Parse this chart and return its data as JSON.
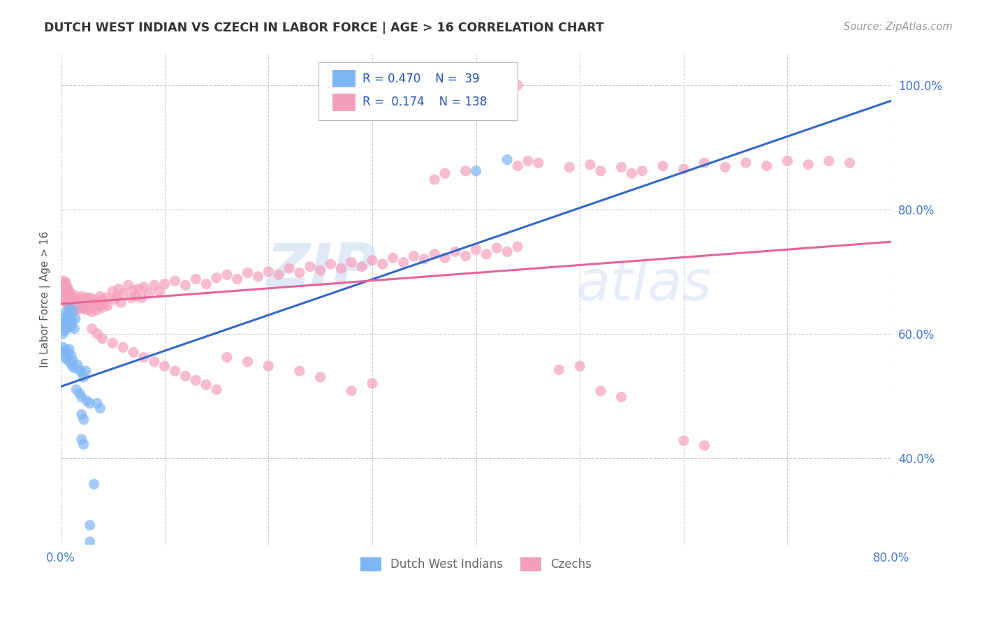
{
  "title": "DUTCH WEST INDIAN VS CZECH IN LABOR FORCE | AGE > 16 CORRELATION CHART",
  "source": "Source: ZipAtlas.com",
  "ylabel": "In Labor Force | Age > 16",
  "xlim": [
    0.0,
    0.8
  ],
  "ylim": [
    0.26,
    1.05
  ],
  "yticks_right": [
    0.4,
    0.6,
    0.8,
    1.0
  ],
  "yticklabels_right": [
    "40.0%",
    "60.0%",
    "80.0%",
    "100.0%"
  ],
  "blue_color": "#7EB6F5",
  "pink_color": "#F5A0BB",
  "line_blue": "#3366CC",
  "line_pink": "#E8629A",
  "blue_line_x": [
    0.0,
    0.8
  ],
  "blue_line_y": [
    0.515,
    0.975
  ],
  "pink_line_x": [
    0.0,
    0.8
  ],
  "pink_line_y": [
    0.648,
    0.748
  ],
  "background_color": "#FFFFFF",
  "grid_color": "#CCCCCC",
  "blue_scatter": [
    [
      0.002,
      0.6
    ],
    [
      0.003,
      0.61
    ],
    [
      0.003,
      0.625
    ],
    [
      0.004,
      0.618
    ],
    [
      0.004,
      0.605
    ],
    [
      0.005,
      0.635
    ],
    [
      0.006,
      0.628
    ],
    [
      0.006,
      0.615
    ],
    [
      0.007,
      0.622
    ],
    [
      0.007,
      0.61
    ],
    [
      0.008,
      0.64
    ],
    [
      0.009,
      0.618
    ],
    [
      0.01,
      0.63
    ],
    [
      0.01,
      0.612
    ],
    [
      0.011,
      0.62
    ],
    [
      0.012,
      0.638
    ],
    [
      0.013,
      0.608
    ],
    [
      0.014,
      0.624
    ],
    [
      0.002,
      0.578
    ],
    [
      0.003,
      0.57
    ],
    [
      0.004,
      0.562
    ],
    [
      0.005,
      0.574
    ],
    [
      0.006,
      0.558
    ],
    [
      0.007,
      0.568
    ],
    [
      0.008,
      0.575
    ],
    [
      0.009,
      0.554
    ],
    [
      0.01,
      0.565
    ],
    [
      0.011,
      0.548
    ],
    [
      0.012,
      0.556
    ],
    [
      0.013,
      0.545
    ],
    [
      0.016,
      0.55
    ],
    [
      0.018,
      0.542
    ],
    [
      0.02,
      0.538
    ],
    [
      0.022,
      0.53
    ],
    [
      0.024,
      0.54
    ],
    [
      0.015,
      0.51
    ],
    [
      0.018,
      0.504
    ],
    [
      0.02,
      0.498
    ],
    [
      0.025,
      0.492
    ],
    [
      0.028,
      0.488
    ],
    [
      0.02,
      0.47
    ],
    [
      0.022,
      0.462
    ],
    [
      0.035,
      0.488
    ],
    [
      0.038,
      0.48
    ],
    [
      0.02,
      0.43
    ],
    [
      0.022,
      0.422
    ],
    [
      0.032,
      0.358
    ],
    [
      0.028,
      0.292
    ],
    [
      0.028,
      0.265
    ],
    [
      0.43,
      0.88
    ],
    [
      0.4,
      0.862
    ]
  ],
  "pink_scatter": [
    [
      0.002,
      0.68
    ],
    [
      0.002,
      0.67
    ],
    [
      0.003,
      0.685
    ],
    [
      0.003,
      0.672
    ],
    [
      0.003,
      0.66
    ],
    [
      0.004,
      0.678
    ],
    [
      0.004,
      0.665
    ],
    [
      0.004,
      0.658
    ],
    [
      0.005,
      0.682
    ],
    [
      0.005,
      0.668
    ],
    [
      0.005,
      0.655
    ],
    [
      0.006,
      0.675
    ],
    [
      0.006,
      0.66
    ],
    [
      0.006,
      0.648
    ],
    [
      0.007,
      0.672
    ],
    [
      0.007,
      0.658
    ],
    [
      0.007,
      0.645
    ],
    [
      0.008,
      0.668
    ],
    [
      0.008,
      0.655
    ],
    [
      0.008,
      0.642
    ],
    [
      0.009,
      0.665
    ],
    [
      0.009,
      0.65
    ],
    [
      0.01,
      0.662
    ],
    [
      0.01,
      0.648
    ],
    [
      0.011,
      0.658
    ],
    [
      0.011,
      0.645
    ],
    [
      0.012,
      0.655
    ],
    [
      0.013,
      0.662
    ],
    [
      0.014,
      0.655
    ],
    [
      0.015,
      0.65
    ],
    [
      0.015,
      0.638
    ],
    [
      0.016,
      0.645
    ],
    [
      0.017,
      0.655
    ],
    [
      0.018,
      0.648
    ],
    [
      0.019,
      0.64
    ],
    [
      0.02,
      0.66
    ],
    [
      0.02,
      0.645
    ],
    [
      0.021,
      0.655
    ],
    [
      0.022,
      0.648
    ],
    [
      0.023,
      0.64
    ],
    [
      0.024,
      0.652
    ],
    [
      0.025,
      0.658
    ],
    [
      0.025,
      0.645
    ],
    [
      0.026,
      0.638
    ],
    [
      0.027,
      0.65
    ],
    [
      0.028,
      0.642
    ],
    [
      0.028,
      0.658
    ],
    [
      0.03,
      0.65
    ],
    [
      0.03,
      0.635
    ],
    [
      0.032,
      0.648
    ],
    [
      0.033,
      0.655
    ],
    [
      0.034,
      0.645
    ],
    [
      0.035,
      0.638
    ],
    [
      0.036,
      0.65
    ],
    [
      0.038,
      0.66
    ],
    [
      0.038,
      0.645
    ],
    [
      0.04,
      0.655
    ],
    [
      0.04,
      0.642
    ],
    [
      0.042,
      0.648
    ],
    [
      0.044,
      0.658
    ],
    [
      0.045,
      0.645
    ],
    [
      0.05,
      0.668
    ],
    [
      0.052,
      0.655
    ],
    [
      0.054,
      0.66
    ],
    [
      0.056,
      0.672
    ],
    [
      0.058,
      0.65
    ],
    [
      0.06,
      0.665
    ],
    [
      0.065,
      0.678
    ],
    [
      0.068,
      0.658
    ],
    [
      0.07,
      0.67
    ],
    [
      0.072,
      0.66
    ],
    [
      0.075,
      0.672
    ],
    [
      0.078,
      0.658
    ],
    [
      0.08,
      0.675
    ],
    [
      0.085,
      0.665
    ],
    [
      0.09,
      0.678
    ],
    [
      0.095,
      0.668
    ],
    [
      0.1,
      0.68
    ],
    [
      0.11,
      0.685
    ],
    [
      0.12,
      0.678
    ],
    [
      0.13,
      0.688
    ],
    [
      0.14,
      0.68
    ],
    [
      0.15,
      0.69
    ],
    [
      0.16,
      0.695
    ],
    [
      0.17,
      0.688
    ],
    [
      0.18,
      0.698
    ],
    [
      0.19,
      0.692
    ],
    [
      0.2,
      0.7
    ],
    [
      0.21,
      0.695
    ],
    [
      0.22,
      0.705
    ],
    [
      0.23,
      0.698
    ],
    [
      0.24,
      0.708
    ],
    [
      0.25,
      0.702
    ],
    [
      0.26,
      0.712
    ],
    [
      0.27,
      0.705
    ],
    [
      0.28,
      0.715
    ],
    [
      0.29,
      0.708
    ],
    [
      0.3,
      0.718
    ],
    [
      0.31,
      0.712
    ],
    [
      0.32,
      0.722
    ],
    [
      0.33,
      0.715
    ],
    [
      0.34,
      0.725
    ],
    [
      0.35,
      0.72
    ],
    [
      0.36,
      0.728
    ],
    [
      0.37,
      0.722
    ],
    [
      0.38,
      0.732
    ],
    [
      0.39,
      0.725
    ],
    [
      0.4,
      0.735
    ],
    [
      0.41,
      0.728
    ],
    [
      0.42,
      0.738
    ],
    [
      0.43,
      0.732
    ],
    [
      0.44,
      0.74
    ],
    [
      0.36,
      0.848
    ],
    [
      0.37,
      0.858
    ],
    [
      0.39,
      0.862
    ],
    [
      0.44,
      0.87
    ],
    [
      0.45,
      0.878
    ],
    [
      0.46,
      0.875
    ],
    [
      0.44,
      1.0
    ],
    [
      0.49,
      0.868
    ],
    [
      0.51,
      0.872
    ],
    [
      0.52,
      0.862
    ],
    [
      0.54,
      0.868
    ],
    [
      0.55,
      0.858
    ],
    [
      0.56,
      0.862
    ],
    [
      0.58,
      0.87
    ],
    [
      0.6,
      0.865
    ],
    [
      0.62,
      0.875
    ],
    [
      0.64,
      0.868
    ],
    [
      0.66,
      0.875
    ],
    [
      0.68,
      0.87
    ],
    [
      0.7,
      0.878
    ],
    [
      0.72,
      0.872
    ],
    [
      0.74,
      0.878
    ],
    [
      0.76,
      0.875
    ],
    [
      0.03,
      0.608
    ],
    [
      0.035,
      0.6
    ],
    [
      0.04,
      0.592
    ],
    [
      0.05,
      0.585
    ],
    [
      0.06,
      0.578
    ],
    [
      0.07,
      0.57
    ],
    [
      0.08,
      0.562
    ],
    [
      0.09,
      0.555
    ],
    [
      0.1,
      0.548
    ],
    [
      0.11,
      0.54
    ],
    [
      0.12,
      0.532
    ],
    [
      0.13,
      0.525
    ],
    [
      0.14,
      0.518
    ],
    [
      0.15,
      0.51
    ],
    [
      0.48,
      0.542
    ],
    [
      0.5,
      0.548
    ],
    [
      0.6,
      0.428
    ],
    [
      0.62,
      0.42
    ],
    [
      0.54,
      0.498
    ],
    [
      0.52,
      0.508
    ],
    [
      0.28,
      0.508
    ],
    [
      0.3,
      0.52
    ],
    [
      0.25,
      0.53
    ],
    [
      0.23,
      0.54
    ],
    [
      0.2,
      0.548
    ],
    [
      0.18,
      0.555
    ],
    [
      0.16,
      0.562
    ]
  ]
}
